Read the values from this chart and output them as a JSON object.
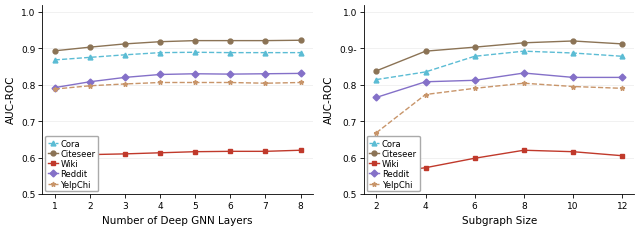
{
  "left": {
    "x": [
      1,
      2,
      3,
      4,
      5,
      6,
      7,
      8
    ],
    "xlabel": "Number of Deep GNN Layers",
    "ylabel": "AUC-ROC",
    "ylim": [
      0.5,
      1.02
    ],
    "yticks": [
      0.5,
      0.6,
      0.7,
      0.8,
      0.9,
      1.0
    ],
    "ytick_labels": [
      "0.5",
      "0.6",
      "0.7",
      "0.8",
      "0.9",
      "1.0"
    ],
    "series": {
      "Cora": {
        "values": [
          0.868,
          0.875,
          0.882,
          0.888,
          0.889,
          0.888,
          0.888,
          0.888
        ],
        "color": "#5bbcd4",
        "marker": "^",
        "linestyle": "--"
      },
      "Citeseer": {
        "values": [
          0.893,
          0.903,
          0.912,
          0.918,
          0.921,
          0.921,
          0.921,
          0.922
        ],
        "color": "#8B7355",
        "marker": "o",
        "linestyle": "-"
      },
      "Wiki": {
        "values": [
          0.6,
          0.608,
          0.61,
          0.613,
          0.616,
          0.617,
          0.617,
          0.62
        ],
        "color": "#c0392b",
        "marker": "s",
        "linestyle": "-"
      },
      "Reddit": {
        "values": [
          0.792,
          0.808,
          0.82,
          0.828,
          0.83,
          0.829,
          0.83,
          0.831
        ],
        "color": "#8470c8",
        "marker": "D",
        "linestyle": "-"
      },
      "YelpChi": {
        "values": [
          0.788,
          0.797,
          0.802,
          0.806,
          0.806,
          0.806,
          0.804,
          0.806
        ],
        "color": "#c8956a",
        "marker": "*",
        "linestyle": "--"
      }
    }
  },
  "right": {
    "x": [
      2,
      4,
      6,
      8,
      10,
      12
    ],
    "xlabel": "Subgraph Size",
    "ylabel": "AUC-ROC",
    "ylim": [
      0.5,
      1.02
    ],
    "yticks": [
      0.5,
      0.6,
      0.7,
      0.8,
      0.9,
      1.0
    ],
    "ytick_labels": [
      "0.5",
      "0.6",
      "0.7",
      "0.8",
      "0.9-",
      "1.0"
    ],
    "series": {
      "Cora": {
        "values": [
          0.814,
          0.835,
          0.878,
          0.892,
          0.887,
          0.878
        ],
        "color": "#5bbcd4",
        "marker": "^",
        "linestyle": "--"
      },
      "Citeseer": {
        "values": [
          0.838,
          0.892,
          0.903,
          0.915,
          0.92,
          0.912
        ],
        "color": "#8B7355",
        "marker": "o",
        "linestyle": "-"
      },
      "Wiki": {
        "values": [
          0.555,
          0.572,
          0.598,
          0.62,
          0.616,
          0.605
        ],
        "color": "#c0392b",
        "marker": "s",
        "linestyle": "-"
      },
      "Reddit": {
        "values": [
          0.765,
          0.808,
          0.812,
          0.832,
          0.82,
          0.82
        ],
        "color": "#8470c8",
        "marker": "D",
        "linestyle": "-"
      },
      "YelpChi": {
        "values": [
          0.668,
          0.773,
          0.79,
          0.804,
          0.795,
          0.79
        ],
        "color": "#c8956a",
        "marker": "*",
        "linestyle": "--"
      }
    }
  },
  "legend_labels": [
    "Cora",
    "Citeseer",
    "Wiki",
    "Reddit",
    "YelpChi"
  ],
  "background_color": "#ffffff",
  "fontsize_axis_label": 7.5,
  "fontsize_tick": 6.5,
  "fontsize_legend": 6.0,
  "linewidth": 1.0,
  "markersize": 3.5
}
